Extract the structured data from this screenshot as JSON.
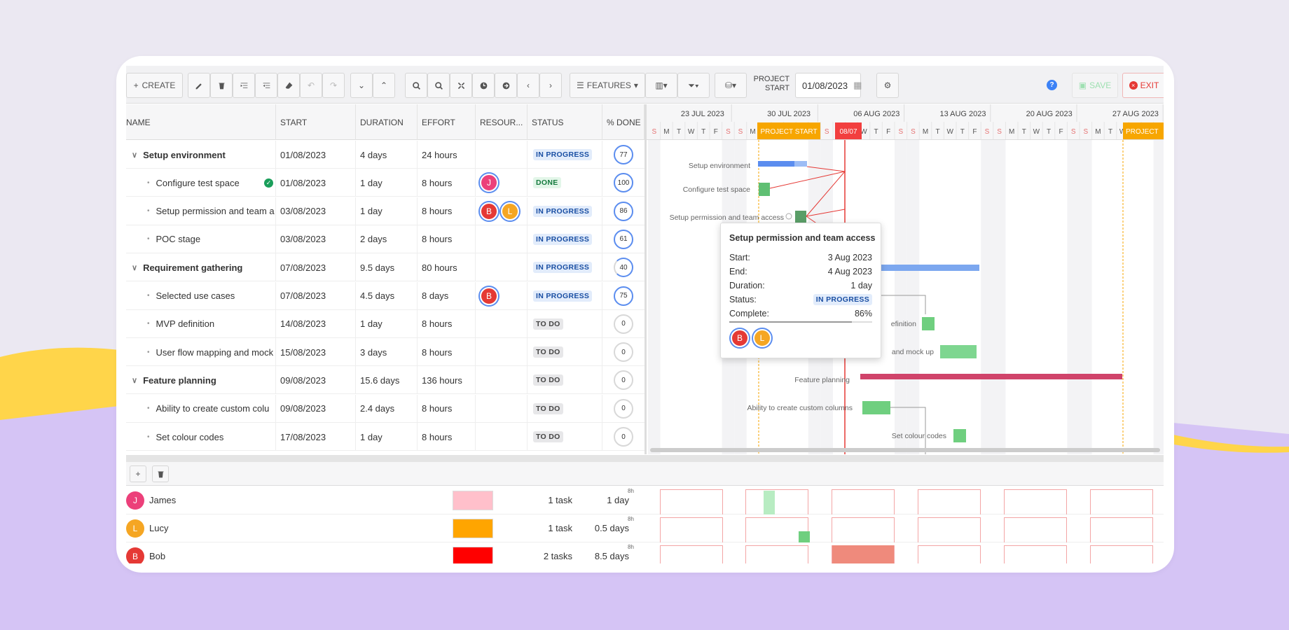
{
  "toolbar": {
    "create_label": "CREATE",
    "features_label": "FEATURES",
    "project_start_label": "PROJECT START",
    "project_start_value": "01/08/2023",
    "save_label": "SAVE",
    "exit_label": "EXIT"
  },
  "columns": [
    "NAME",
    "START",
    "DURATION",
    "EFFORT",
    "RESOUR...",
    "STATUS",
    "% DONE"
  ],
  "tasks": [
    {
      "name": "Setup environment",
      "start": "01/08/2023",
      "duration": "4 days",
      "effort": "24 hours",
      "status": "IN PROGRESS",
      "done": "77",
      "level": 0
    },
    {
      "name": "Configure test space",
      "start": "01/08/2023",
      "duration": "1 day",
      "effort": "8 hours",
      "status": "DONE",
      "done": "100",
      "level": 1
    },
    {
      "name": "Setup permission and team a",
      "start": "03/08/2023",
      "duration": "1 day",
      "effort": "8 hours",
      "status": "IN PROGRESS",
      "done": "86",
      "level": 1
    },
    {
      "name": "POC stage",
      "start": "03/08/2023",
      "duration": "2 days",
      "effort": "8 hours",
      "status": "IN PROGRESS",
      "done": "61",
      "level": 1
    },
    {
      "name": "Requirement gathering",
      "start": "07/08/2023",
      "duration": "9.5 days",
      "effort": "80 hours",
      "status": "IN PROGRESS",
      "done": "40",
      "level": 0
    },
    {
      "name": "Selected use cases",
      "start": "07/08/2023",
      "duration": "4.5 days",
      "effort": "8 days",
      "status": "IN PROGRESS",
      "done": "75",
      "level": 1
    },
    {
      "name": "MVP definition",
      "start": "14/08/2023",
      "duration": "1 day",
      "effort": "8 hours",
      "status": "TO DO",
      "done": "0",
      "level": 1
    },
    {
      "name": "User flow mapping and mock",
      "start": "15/08/2023",
      "duration": "3 days",
      "effort": "8 hours",
      "status": "TO DO",
      "done": "0",
      "level": 1
    },
    {
      "name": "Feature planning",
      "start": "09/08/2023",
      "duration": "15.6 days",
      "effort": "136 hours",
      "status": "TO DO",
      "done": "0",
      "level": 0
    },
    {
      "name": "Ability to create custom colu",
      "start": "09/08/2023",
      "duration": "2.4 days",
      "effort": "8 hours",
      "status": "TO DO",
      "done": "0",
      "level": 1
    },
    {
      "name": "Set colour codes",
      "start": "17/08/2023",
      "duration": "1 day",
      "effort": "8 hours",
      "status": "TO DO",
      "done": "0",
      "level": 1
    }
  ],
  "assignees": {
    "row1": [
      "J"
    ],
    "row2": [
      "B",
      "L"
    ],
    "row5": [
      "B"
    ]
  },
  "timeline": {
    "weeks": [
      "23 JUL 2023",
      "30 JUL 2023",
      "06 AUG 2023",
      "13 AUG 2023",
      "20 AUG 2023",
      "27 AUG 2023"
    ],
    "days": [
      "S",
      "M",
      "T",
      "W",
      "T",
      "F",
      "S",
      "S",
      "M",
      "T",
      "W",
      "T",
      "F",
      "S",
      "S",
      "M",
      "T",
      "W",
      "T",
      "F",
      "S",
      "S",
      "M",
      "T",
      "W",
      "T",
      "F",
      "S",
      "S",
      "M",
      "T",
      "W",
      "T",
      "F",
      "S",
      "S",
      "M",
      "T",
      "W",
      "T",
      "F",
      "S"
    ],
    "project_start_marker": "PROJECT START",
    "today_marker": "08/07",
    "project_end_marker": "PROJECT"
  },
  "bar_labels": {
    "setup_env": "Setup environment",
    "configure": "Configure test space",
    "setup_perm": "Setup permission and team access",
    "mvp": "efinition",
    "user_flow": "and mock up",
    "feature_planning": "Feature planning",
    "custom_cols": "Ability to create custom columns",
    "colour_codes": "Set colour codes"
  },
  "tooltip": {
    "title": "Setup permission and team access",
    "start_label": "Start:",
    "start_value": "3 Aug 2023",
    "end_label": "End:",
    "end_value": "4 Aug 2023",
    "duration_label": "Duration:",
    "duration_value": "1 day",
    "status_label": "Status:",
    "status_value": "IN PROGRESS",
    "complete_label": "Complete:",
    "complete_value": "86%",
    "avatars": [
      "B",
      "L"
    ]
  },
  "resources": [
    {
      "initial": "J",
      "name": "James",
      "color": "#ffc0cb",
      "avatar_color": "#ec407a",
      "tasks": "1 task",
      "days": "1 day"
    },
    {
      "initial": "L",
      "name": "Lucy",
      "color": "#ffa500",
      "avatar_color": "#f5a623",
      "tasks": "1 task",
      "days": "0.5 days"
    },
    {
      "initial": "B",
      "name": "Bob",
      "color": "#ff0000",
      "avatar_color": "#e53935",
      "tasks": "2 tasks",
      "days": "8.5 days"
    }
  ],
  "histogram_label": "8h",
  "colors": {
    "accent": "#5b8def",
    "today": "#f23f3f",
    "project": "#f7a600",
    "done_bar": "#6fcf7f",
    "parent_bar": "#5b8def",
    "feature_bar": "#d0436a"
  }
}
